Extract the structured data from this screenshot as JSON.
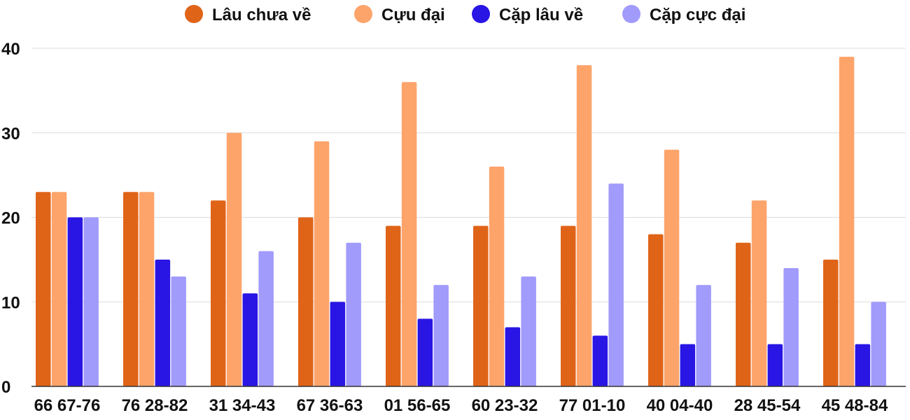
{
  "chart_data": {
    "type": "bar",
    "categories": [
      "66 67-76",
      "76 28-82",
      "31 34-43",
      "67 36-63",
      "01 56-65",
      "60 23-32",
      "77 01-10",
      "40 04-40",
      "28 45-54",
      "45 48-84"
    ],
    "series": [
      {
        "name": "Lâu chưa về",
        "color": "#e06418",
        "values": [
          23,
          23,
          22,
          20,
          19,
          19,
          19,
          18,
          17,
          15
        ]
      },
      {
        "name": "Cựu đại",
        "color": "#fda46b",
        "values": [
          23,
          23,
          30,
          29,
          36,
          26,
          38,
          28,
          22,
          39
        ]
      },
      {
        "name": "Cặp lâu về",
        "color": "#2915e4",
        "values": [
          20,
          15,
          11,
          10,
          8,
          7,
          6,
          5,
          5,
          5
        ]
      },
      {
        "name": "Cặp cực đại",
        "color": "#a19bfc",
        "values": [
          20,
          13,
          16,
          17,
          12,
          13,
          24,
          12,
          14,
          10
        ]
      }
    ],
    "yticks": [
      "0",
      "10",
      "20",
      "30",
      "40"
    ],
    "ylim": [
      0,
      40
    ],
    "grid": true,
    "legend_position": "top-center",
    "title": "",
    "xlabel": "",
    "ylabel": ""
  }
}
